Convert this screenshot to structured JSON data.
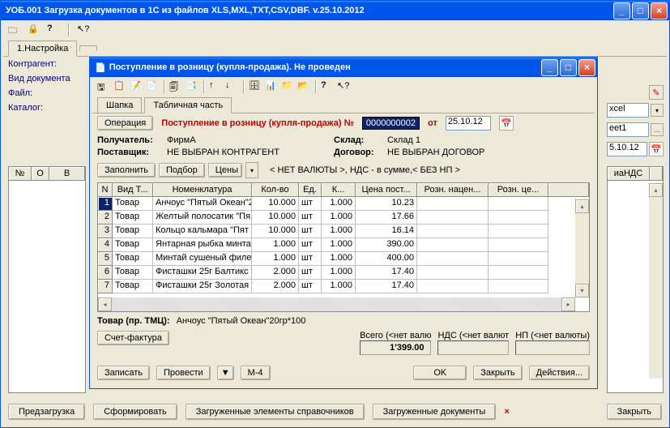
{
  "outer": {
    "title": "УОБ.001 Загрузка документов в 1С из файлов XLS,MXL,TXT,CSV,DBF.  v.25.10.2012",
    "tab1": "1.Настройка",
    "lbl_kontr": "Контрагент:",
    "lbl_vid": "Вид документа",
    "lbl_file": "Файл:",
    "lbl_kat": "Каталог:",
    "val_xcel": "xcel",
    "val_sheet": "eet1",
    "val_date": "5.10.12",
    "ghdr_n": "№",
    "ghdr_o": "O",
    "ghdr_v": "В",
    "ghdr_nds": "иаНДС",
    "btn_predz": "Предзагрузка",
    "btn_form": "Сформировать",
    "btn_zagr_el": "Загруженные элементы справочников",
    "btn_zagr_doc": "Загруженные документы",
    "btn_close": "Закрыть"
  },
  "inner": {
    "title": "Поступление в розницу (купля-продажа). Не проведен",
    "tab_shapka": "Шапка",
    "tab_tabl": "Табличная часть",
    "btn_oper": "Операция",
    "doc_title": "Поступление в розницу (купля-продажа) №",
    "doc_num": "0000000002",
    "doc_ot": "от",
    "doc_date": "25.10.12",
    "lbl_poluch": "Получатель:",
    "val_poluch": "ФирмА",
    "lbl_post": "Поставщик:",
    "val_post": "НЕ ВЫБРАН КОНТРАГЕНТ",
    "lbl_sklad": "Склад:",
    "val_sklad": "Склад 1",
    "lbl_dog": "Договор:",
    "val_dog": "НЕ ВЫБРАН ДОГОВОР",
    "btn_zap": "Заполнить",
    "btn_podbor": "Подбор",
    "btn_ceny": "Цены",
    "txt_val": "< НЕТ ВАЛЮТЫ >, НДС - в сумме,< БЕЗ НП >",
    "cols": {
      "n": "N",
      "vid": "Вид Т...",
      "nom": "Номенклатура",
      "kol": "Кол-во",
      "ed": "Ед.",
      "k": "К...",
      "cena": "Цена пост...",
      "nac": "Розн. нацен...",
      "rc": "Розн. це..."
    },
    "rows": [
      {
        "n": "1",
        "vid": "Товар",
        "nom": "Анчоус \"Пятый Океан\"2",
        "kol": "10.000",
        "ed": "шт",
        "k": "1.000",
        "cena": "10.23"
      },
      {
        "n": "2",
        "vid": "Товар",
        "nom": "Желтый полосатик \"Пя",
        "kol": "10.000",
        "ed": "шт",
        "k": "1.000",
        "cena": "17.66"
      },
      {
        "n": "3",
        "vid": "Товар",
        "nom": "Кольцо кальмара \"Пят",
        "kol": "10.000",
        "ed": "шт",
        "k": "1.000",
        "cena": "16.14"
      },
      {
        "n": "4",
        "vid": "Товар",
        "nom": "Янтарная рыбка минта",
        "kol": "1.000",
        "ed": "шт",
        "k": "1.000",
        "cena": "390.00"
      },
      {
        "n": "5",
        "vid": "Товар",
        "nom": "Минтай сушеный филе",
        "kol": "1.000",
        "ed": "шт",
        "k": "1.000",
        "cena": "400.00"
      },
      {
        "n": "6",
        "vid": "Товар",
        "nom": "Фисташки 25г Балтикс",
        "kol": "2.000",
        "ed": "шт",
        "k": "1.000",
        "cena": "17.40"
      },
      {
        "n": "7",
        "vid": "Товар",
        "nom": "Фисташки 25г Золотая",
        "kol": "2.000",
        "ed": "шт",
        "k": "1.000",
        "cena": "17.40"
      }
    ],
    "lbl_tovar": "Товар (пр. ТМЦ):",
    "val_tovar": "Анчоус \"Пятый Океан\"20гр*100",
    "btn_sf": "Счет-фактура",
    "lbl_vsego": "Всего (<нет валю",
    "val_vsego": "1'399.00",
    "lbl_nds": "НДС (<нет валют",
    "lbl_np": "НП (<нет валюты)",
    "btn_zapis": "Записать",
    "btn_prov": "Провести",
    "btn_m4": "М-4",
    "btn_ok": "OK",
    "btn_zakr": "Закрыть",
    "btn_deist": "Действия..."
  }
}
